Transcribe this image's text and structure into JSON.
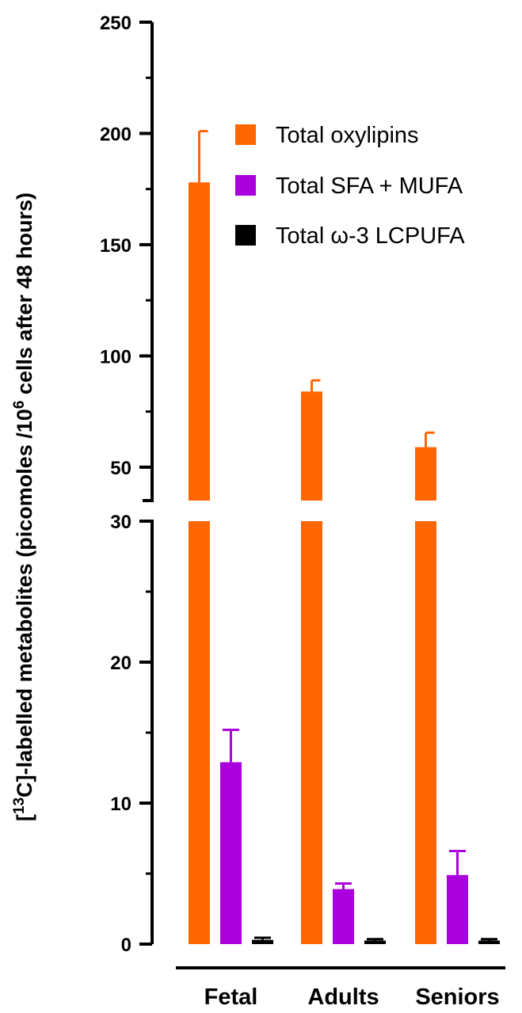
{
  "chart_data": {
    "type": "bar",
    "title": "",
    "xlabel": "",
    "ylabel": {
      "prefix": "[",
      "isotope": "13",
      "mid": "C]-labelled metabolites (picomoles /10",
      "exponent": "6",
      "suffix": " cells after 48 hours)"
    },
    "categories": [
      "Fetal",
      "Adults",
      "Seniors"
    ],
    "axis_break": true,
    "ylim_lower": [
      0,
      30
    ],
    "ylim_upper": [
      35,
      250
    ],
    "yticks_lower": [
      "0",
      "10",
      "20",
      "30"
    ],
    "yticks_upper": [
      "50",
      "100",
      "150",
      "200",
      "250"
    ],
    "legend_position": "top-right",
    "grid": false,
    "series": [
      {
        "name": "Total oxylipins",
        "color": "#FF6600",
        "values": [
          178,
          84,
          59
        ],
        "errors": [
          23,
          5,
          6.5
        ]
      },
      {
        "name": "Total SFA + MUFA",
        "color": "#AA00DD",
        "values": [
          12.9,
          3.9,
          4.9
        ],
        "errors": [
          2.3,
          0.4,
          1.7
        ]
      },
      {
        "name": "Total ω-3 LCPUFA",
        "color": "#000000",
        "values": [
          0.3,
          0.25,
          0.25
        ],
        "errors": [
          0.15,
          0.1,
          0.1
        ]
      }
    ]
  }
}
